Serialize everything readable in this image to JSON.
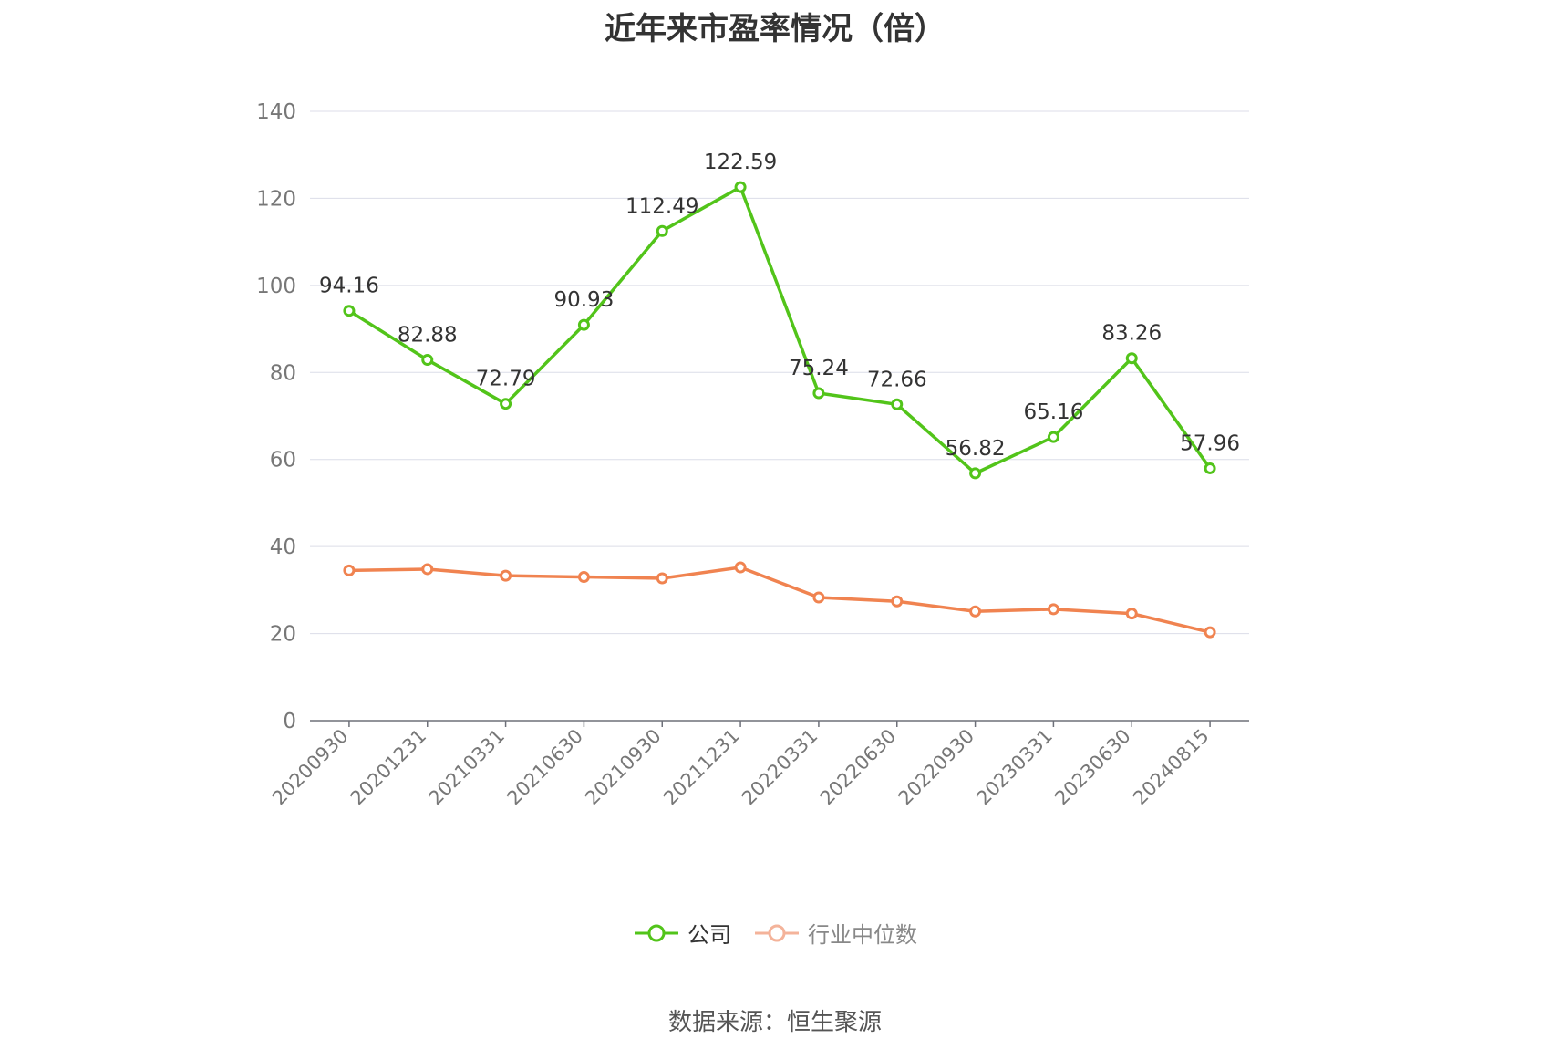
{
  "chart_data": {
    "type": "line",
    "title": "近年来市盈率情况（倍）",
    "categories": [
      "20200930",
      "20201231",
      "20210331",
      "20210630",
      "20210930",
      "20211231",
      "20220331",
      "20220630",
      "20220930",
      "20230331",
      "20230630",
      "20240815"
    ],
    "series": [
      {
        "name": "公司",
        "color": "#52c41a",
        "values": [
          94.16,
          82.88,
          72.79,
          90.93,
          112.49,
          122.59,
          75.24,
          72.66,
          56.82,
          65.16,
          83.26,
          57.96
        ],
        "labels": [
          "94.16",
          "82.88",
          "72.79",
          "90.93",
          "112.49",
          "122.59",
          "75.24",
          "72.66",
          "56.82",
          "65.16",
          "83.26",
          "57.96"
        ]
      },
      {
        "name": "行业中位数",
        "color": "#f08350",
        "values": [
          34.5,
          34.8,
          33.3,
          33.0,
          32.7,
          35.2,
          28.3,
          27.4,
          25.1,
          25.6,
          24.6,
          20.3
        ]
      }
    ],
    "ylim": [
      0,
      140
    ],
    "yticks": [
      0,
      20,
      40,
      60,
      80,
      100,
      120,
      140
    ],
    "grid": true,
    "legend_position": "bottom"
  },
  "legend": [
    {
      "label": "公司",
      "color": "#52c41a",
      "text_color": "#333333"
    },
    {
      "label": "行业中位数",
      "color": "#f4b39a",
      "text_color": "#888888"
    }
  ],
  "source": "数据来源：恒生聚源"
}
